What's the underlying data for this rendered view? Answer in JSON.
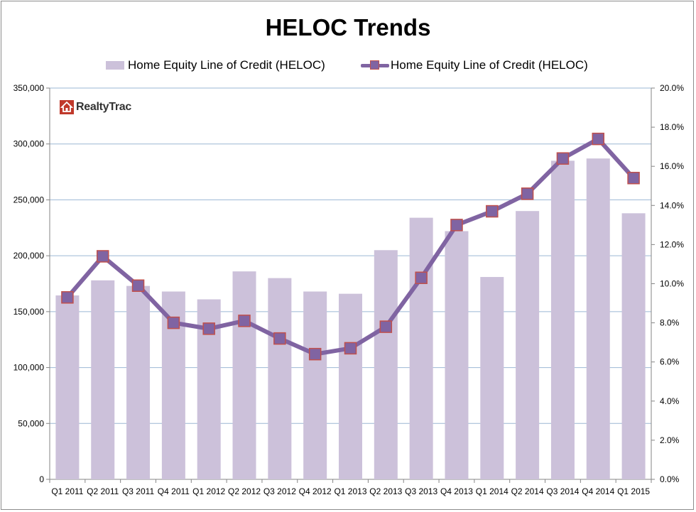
{
  "chart_data": {
    "type": "bar+line",
    "title": "HELOC Trends",
    "categories": [
      "Q1 2011",
      "Q2 2011",
      "Q3 2011",
      "Q4 2011",
      "Q1 2012",
      "Q2 2012",
      "Q3 2012",
      "Q4 2012",
      "Q1 2013",
      "Q2 2013",
      "Q3 2013",
      "Q4 2013",
      "Q1 2014",
      "Q2 2014",
      "Q3 2014",
      "Q4 2014",
      "Q1 2015"
    ],
    "series": [
      {
        "name": "Home Equity Line of Credit (HELOC)",
        "kind": "bar",
        "axis": "left",
        "color": "#ccc1da",
        "values": [
          164500,
          178000,
          173000,
          168000,
          161000,
          186000,
          180000,
          168000,
          166000,
          205000,
          234000,
          222000,
          181000,
          240000,
          285000,
          287000,
          238000
        ]
      },
      {
        "name": "Home Equity Line of Credit (HELOC)",
        "kind": "line",
        "axis": "right",
        "color": "#8064a2",
        "marker_border": "#c0504d",
        "values": [
          9.3,
          11.4,
          9.9,
          8.0,
          7.7,
          8.1,
          7.2,
          6.4,
          6.7,
          7.8,
          10.3,
          13.0,
          13.7,
          14.6,
          16.4,
          17.4,
          15.4
        ]
      }
    ],
    "y_left": {
      "ylim": [
        0,
        350000
      ],
      "ticks": [
        "0",
        "50,000",
        "100,000",
        "150,000",
        "200,000",
        "250,000",
        "300,000",
        "350,000"
      ],
      "tick_values": [
        0,
        50000,
        100000,
        150000,
        200000,
        250000,
        300000,
        350000
      ]
    },
    "y_right": {
      "ylim": [
        0,
        20
      ],
      "ticks": [
        "0.0%",
        "2.0%",
        "4.0%",
        "6.0%",
        "8.0%",
        "10.0%",
        "12.0%",
        "14.0%",
        "16.0%",
        "18.0%",
        "20.0%"
      ],
      "tick_values": [
        0,
        2,
        4,
        6,
        8,
        10,
        12,
        14,
        16,
        18,
        20
      ]
    },
    "grid": true,
    "legend": "top"
  },
  "logo_text": "RealtyTrac"
}
